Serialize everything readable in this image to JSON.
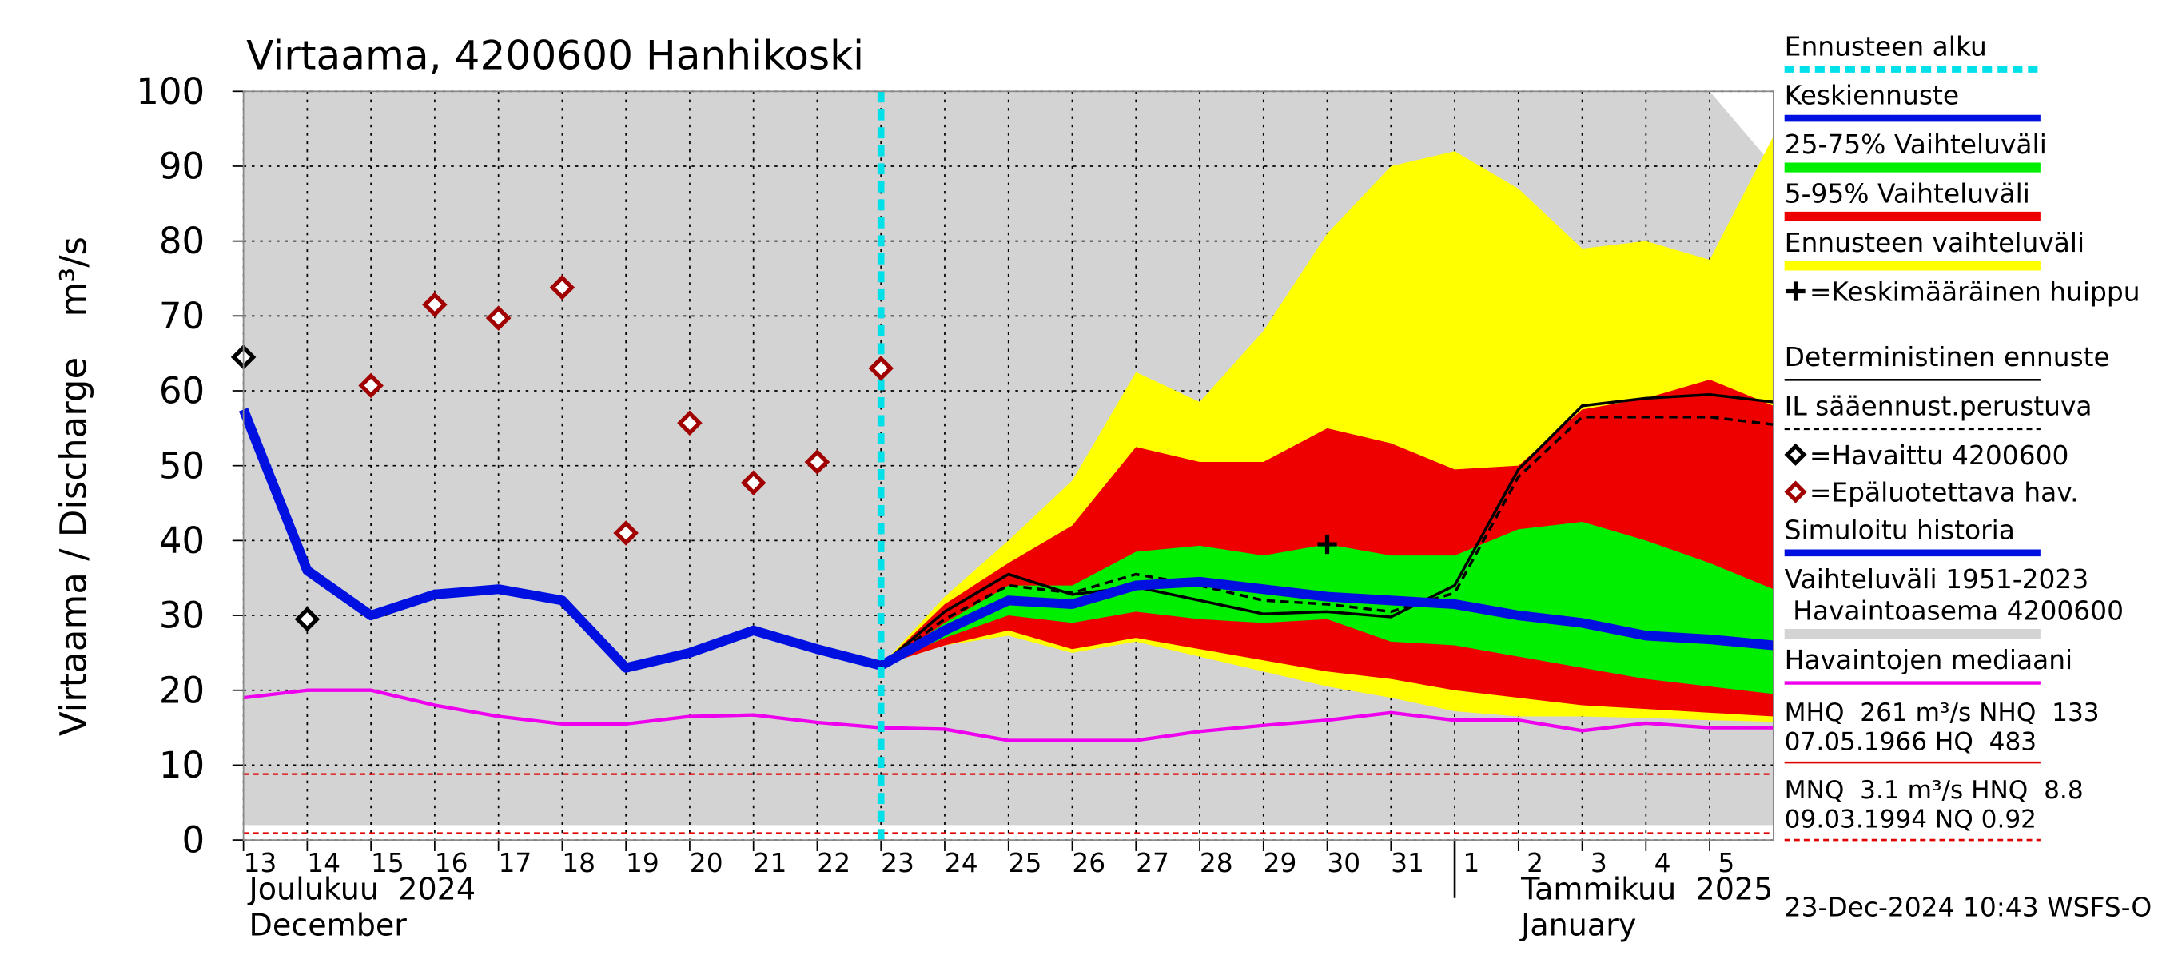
{
  "chart_data": {
    "type": "line",
    "title": "Virtaama, 4200600 Hanhikoski",
    "y_label": "Virtaama / Discharge",
    "y_unit": "m³/s",
    "footer": "23-Dec-2024 10:43 WSFS-O",
    "x": [
      "2024-12-13",
      "2024-12-14",
      "2024-12-15",
      "2024-12-16",
      "2024-12-17",
      "2024-12-18",
      "2024-12-19",
      "2024-12-20",
      "2024-12-21",
      "2024-12-22",
      "2024-12-23",
      "2024-12-24",
      "2024-12-25",
      "2024-12-26",
      "2024-12-27",
      "2024-12-28",
      "2024-12-29",
      "2024-12-30",
      "2024-12-31",
      "2025-01-01",
      "2025-01-02",
      "2025-01-03",
      "2025-01-04",
      "2025-01-05",
      "2025-01-06"
    ],
    "xlim": [
      "2024-12-13",
      "2025-01-06"
    ],
    "xticks": [
      {
        "value": "2024-12-13",
        "label": "13"
      },
      {
        "value": "2024-12-14",
        "label": "14"
      },
      {
        "value": "2024-12-15",
        "label": "15"
      },
      {
        "value": "2024-12-16",
        "label": "16"
      },
      {
        "value": "2024-12-17",
        "label": "17"
      },
      {
        "value": "2024-12-18",
        "label": "18"
      },
      {
        "value": "2024-12-19",
        "label": "19"
      },
      {
        "value": "2024-12-20",
        "label": "20"
      },
      {
        "value": "2024-12-21",
        "label": "21"
      },
      {
        "value": "2024-12-22",
        "label": "22"
      },
      {
        "value": "2024-12-23",
        "label": "23"
      },
      {
        "value": "2024-12-24",
        "label": "24"
      },
      {
        "value": "2024-12-25",
        "label": "25"
      },
      {
        "value": "2024-12-26",
        "label": "26"
      },
      {
        "value": "2024-12-27",
        "label": "27"
      },
      {
        "value": "2024-12-28",
        "label": "28"
      },
      {
        "value": "2024-12-29",
        "label": "29"
      },
      {
        "value": "2024-12-30",
        "label": "30"
      },
      {
        "value": "2024-12-31",
        "label": "31"
      },
      {
        "value": "2025-01-01",
        "label": "1"
      },
      {
        "value": "2025-01-02",
        "label": "2"
      },
      {
        "value": "2025-01-03",
        "label": "3"
      },
      {
        "value": "2025-01-04",
        "label": "4"
      },
      {
        "value": "2025-01-05",
        "label": "5"
      }
    ],
    "month_labels": [
      {
        "at": "2024-12-13",
        "lines": [
          "Joulukuu  2024",
          "December"
        ]
      },
      {
        "at": "2025-01-01",
        "lines": [
          "Tammikuu  2025",
          "January"
        ]
      }
    ],
    "ylim": [
      0,
      100
    ],
    "yticks": [
      0,
      10,
      20,
      30,
      40,
      50,
      60,
      70,
      80,
      90,
      100
    ],
    "grid": true,
    "reference_lines": [
      {
        "value": 8.8,
        "color": "#e00000"
      },
      {
        "value": 0.92,
        "color": "#e00000"
      }
    ],
    "series": [
      {
        "name": "Ennusteen alku",
        "kind": "vline",
        "style": "dashed",
        "color": "#00e0e8",
        "at": "2024-12-23"
      },
      {
        "name": "Keskiennuste",
        "kind": "line",
        "style": "thick",
        "color": "#0010e0",
        "values": [
          null,
          null,
          null,
          null,
          null,
          null,
          null,
          null,
          null,
          null,
          23.3,
          28,
          32,
          31.5,
          34,
          34.5,
          33.5,
          32.5,
          32,
          31.5,
          30,
          29,
          27.3,
          26.8,
          26
        ]
      },
      {
        "name": "25-75% Vaihteluväli",
        "kind": "band",
        "color": "#00ee00",
        "values": [
          null,
          null,
          null,
          null,
          null,
          null,
          null,
          null,
          null,
          null,
          23.3,
          29,
          34,
          34,
          38.5,
          39.3,
          38,
          39.5,
          38,
          38,
          41.5,
          42.5,
          40,
          37,
          33.5
        ],
        "low": [
          null,
          null,
          null,
          null,
          null,
          null,
          null,
          null,
          null,
          null,
          23.3,
          27,
          30,
          29,
          30.5,
          29.5,
          29,
          29.5,
          26.5,
          26,
          24.5,
          23,
          21.5,
          20.5,
          19.5
        ]
      },
      {
        "name": "5-95% Vaihteluväli",
        "kind": "band",
        "color": "#ee0000",
        "values": [
          null,
          null,
          null,
          null,
          null,
          null,
          null,
          null,
          null,
          null,
          23.3,
          31.5,
          37,
          42,
          52.5,
          50.5,
          50.5,
          55,
          53,
          49.5,
          50,
          57.5,
          59,
          61.5,
          58
        ],
        "low": [
          null,
          null,
          null,
          null,
          null,
          null,
          null,
          null,
          null,
          null,
          23.3,
          26,
          28,
          25.5,
          27,
          25.5,
          24,
          22.5,
          21.5,
          20,
          19,
          18,
          17.5,
          17,
          16.5
        ]
      },
      {
        "name": "Ennusteen vaihteluväli",
        "kind": "band",
        "color": "#ffff00",
        "values": [
          null,
          null,
          null,
          null,
          null,
          null,
          null,
          null,
          null,
          null,
          23.3,
          32.5,
          40,
          48,
          62.5,
          58.5,
          68,
          81,
          90,
          92,
          87,
          79,
          80,
          77.5,
          94
        ],
        "low": [
          null,
          null,
          null,
          null,
          null,
          null,
          null,
          null,
          null,
          null,
          23.3,
          26,
          27.3,
          25,
          26.5,
          24.5,
          22.5,
          20.5,
          19,
          17.2,
          16.5,
          16.5,
          16.3,
          16,
          15.8
        ]
      },
      {
        "name": "=Keskimääräinen huippu",
        "kind": "plus",
        "color": "#000000",
        "values": [
          null,
          null,
          null,
          null,
          null,
          null,
          null,
          null,
          null,
          null,
          null,
          null,
          null,
          null,
          null,
          null,
          null,
          39.5,
          null,
          null,
          null,
          null,
          null,
          null,
          null
        ]
      },
      {
        "name": "Deterministinen ennuste",
        "kind": "line",
        "style": "thin",
        "color": "#000000",
        "values": [
          null,
          null,
          null,
          null,
          null,
          null,
          null,
          null,
          null,
          null,
          23.3,
          30.5,
          35.5,
          32.8,
          33.8,
          32,
          30.2,
          30.5,
          29.8,
          34,
          49.5,
          58,
          59,
          59.5,
          58.5
        ]
      },
      {
        "name": "IL sääennust.perustuva",
        "kind": "line",
        "style": "dashed",
        "color": "#000000",
        "values": [
          null,
          null,
          null,
          null,
          null,
          null,
          null,
          null,
          null,
          null,
          23.3,
          29.5,
          34,
          33,
          35.5,
          34,
          32,
          31.5,
          30.5,
          33,
          48.5,
          56.5,
          56.5,
          56.5,
          55.5
        ]
      },
      {
        "name": "=Havaittu 4200600",
        "kind": "diamond",
        "color": "#000000",
        "values": [
          64.5,
          29.5,
          null,
          null,
          null,
          null,
          null,
          null,
          null,
          null,
          null,
          null,
          null,
          null,
          null,
          null,
          null,
          null,
          null,
          null,
          null,
          null,
          null,
          null,
          null
        ]
      },
      {
        "name": "=Epäluotettava hav.",
        "kind": "diamond",
        "color": "#a00000",
        "values": [
          null,
          null,
          60.7,
          71.5,
          69.7,
          73.8,
          41,
          55.7,
          47.7,
          50.5,
          63,
          null,
          null,
          null,
          null,
          null,
          null,
          null,
          null,
          null,
          null,
          null,
          null,
          null,
          null
        ]
      },
      {
        "name": "Simuloitu historia",
        "kind": "line",
        "style": "thick",
        "color": "#0010e0",
        "values": [
          57.5,
          36,
          30,
          32.8,
          33.5,
          32,
          23,
          25,
          28,
          25.5,
          23.3,
          null,
          null,
          null,
          null,
          null,
          null,
          null,
          null,
          null,
          null,
          null,
          null,
          null,
          null
        ]
      },
      {
        "name": "Vaihteluväli 1951-2023",
        "name2": " Havaintoasema 4200600",
        "kind": "band",
        "color": "#d3d3d3",
        "values": [
          100,
          100,
          100,
          100,
          100,
          100,
          100,
          100,
          100,
          100,
          100,
          100,
          100,
          100,
          100,
          100,
          100,
          100,
          100,
          100,
          100,
          100,
          100,
          100,
          90
        ],
        "low": [
          2,
          2,
          2,
          2,
          2,
          2,
          2,
          2,
          2,
          2,
          2,
          2,
          2,
          2,
          2,
          2,
          2,
          2,
          2,
          2,
          2,
          2,
          2,
          2,
          2
        ]
      },
      {
        "name": "Havaintojen mediaani",
        "kind": "line",
        "style": "medium",
        "color": "#ee00ee",
        "values": [
          19,
          20,
          20,
          18,
          16.5,
          15.5,
          15.5,
          16.5,
          16.7,
          15.7,
          15,
          14.8,
          13.3,
          13.3,
          13.3,
          14.5,
          15.3,
          16,
          17,
          16,
          16,
          14.6,
          15.6,
          15,
          15
        ]
      }
    ],
    "stats": [
      {
        "lines": [
          "MHQ  261 m³/s NHQ  133",
          "07.05.1966 HQ  483"
        ],
        "color": "#e00000",
        "style": "solid"
      },
      {
        "lines": [
          "MNQ  3.1 m³/s HNQ  8.8",
          "09.03.1994 NQ 0.92"
        ],
        "color": "#e00000",
        "style": "dashed"
      }
    ]
  }
}
